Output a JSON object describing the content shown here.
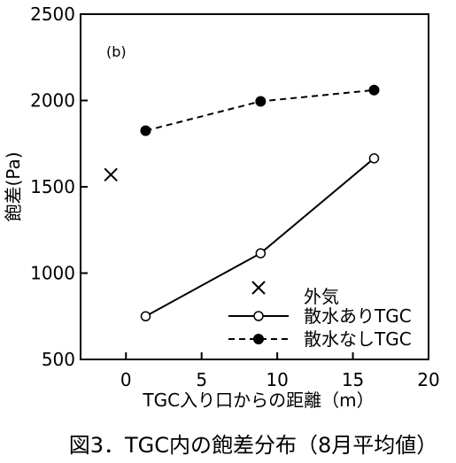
{
  "chart_data": {
    "type": "line",
    "panel_label": "(b)",
    "xlabel": "TGC入り口からの距離（m）",
    "ylabel": "飽差(Pa)",
    "xlim": [
      -3,
      20
    ],
    "ylim": [
      500,
      2500
    ],
    "x_ticks": [
      0,
      5,
      10,
      15,
      20
    ],
    "y_ticks": [
      500,
      1000,
      1500,
      2000,
      2500
    ],
    "x_tick_labels": [
      "0",
      "5",
      "10",
      "15",
      "20"
    ],
    "y_tick_labels": [
      "500",
      "1000",
      "1500",
      "2000",
      "2500"
    ],
    "grid": false,
    "legend_position": "bottom-right",
    "series": [
      {
        "name": "外気",
        "marker": "cross",
        "line": "none",
        "x": [
          -1
        ],
        "y": [
          1570
        ]
      },
      {
        "name": "散水ありTGC",
        "marker": "open-circle",
        "line": "solid",
        "x": [
          1.3,
          8.9,
          16.4
        ],
        "y": [
          750,
          1115,
          1665
        ]
      },
      {
        "name": "散水なしTGC",
        "marker": "filled-circle",
        "line": "dashed",
        "x": [
          1.3,
          8.9,
          16.4
        ],
        "y": [
          1825,
          1995,
          2060
        ]
      }
    ]
  },
  "caption": "図3．TGC内の飽差分布（8月平均値）"
}
